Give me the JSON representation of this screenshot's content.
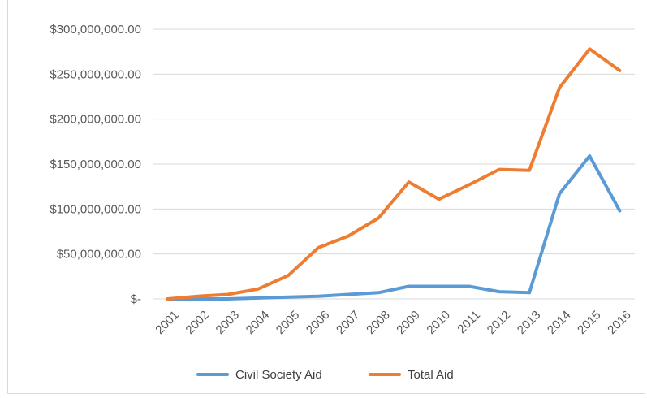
{
  "chart_data": {
    "type": "line",
    "categories": [
      "2001",
      "2002",
      "2003",
      "2004",
      "2005",
      "2006",
      "2007",
      "2008",
      "2009",
      "2010",
      "2011",
      "2012",
      "2013",
      "2014",
      "2015",
      "2016"
    ],
    "series": [
      {
        "name": "Civil Society Aid",
        "color": "#5b9bd5",
        "values": [
          0,
          0,
          0,
          1000000,
          2000000,
          3000000,
          5000000,
          7000000,
          14000000,
          14000000,
          14000000,
          8000000,
          7000000,
          117000000,
          159000000,
          98000000
        ]
      },
      {
        "name": "Total Aid",
        "color": "#ed7d31",
        "values": [
          0,
          3000000,
          5000000,
          11000000,
          26000000,
          57000000,
          70000000,
          90000000,
          130000000,
          111000000,
          127000000,
          144000000,
          143000000,
          235000000,
          278000000,
          254000000
        ]
      }
    ],
    "ylim": [
      0,
      300000000
    ],
    "yticks": [
      {
        "value": 0,
        "label": "$-"
      },
      {
        "value": 50000000,
        "label": "$50,000,000.00"
      },
      {
        "value": 100000000,
        "label": "$100,000,000.00"
      },
      {
        "value": 150000000,
        "label": "$150,000,000.00"
      },
      {
        "value": 200000000,
        "label": "$200,000,000.00"
      },
      {
        "value": 250000000,
        "label": "$250,000,000.00"
      },
      {
        "value": 300000000,
        "label": "$300,000,000.00"
      }
    ],
    "grid": true,
    "legend_position": "bottom"
  }
}
